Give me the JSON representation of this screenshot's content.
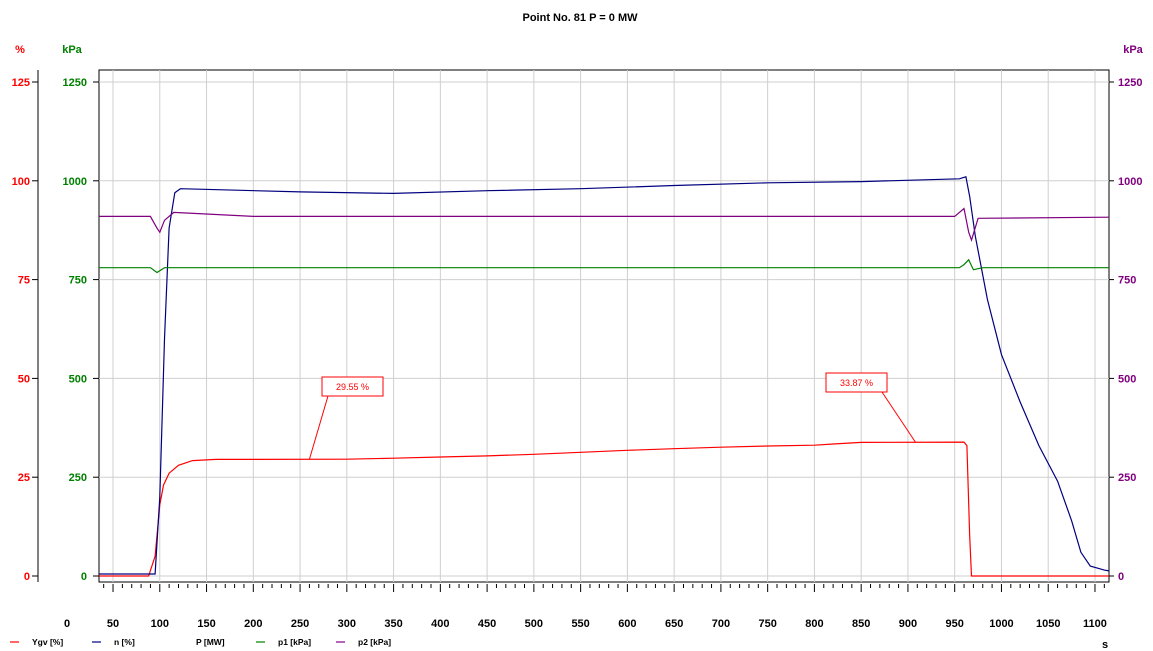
{
  "chart_data": {
    "type": "line",
    "title": "Point No. 81    P = 0 MW",
    "xlabel": "s",
    "xlim": [
      35,
      1115
    ],
    "x_ticks": [
      0,
      50,
      100,
      150,
      200,
      250,
      300,
      350,
      400,
      450,
      500,
      550,
      600,
      650,
      700,
      750,
      800,
      850,
      900,
      950,
      1000,
      1050,
      1100
    ],
    "grid": true,
    "axes": [
      {
        "id": "pct",
        "unit": "%",
        "side": "left-outer",
        "color": "#ff0000",
        "range": [
          0,
          125
        ],
        "ticks": [
          0,
          25,
          50,
          75,
          100,
          125
        ]
      },
      {
        "id": "kpa",
        "unit": "kPa",
        "side": "left-inner",
        "color": "#008000",
        "range": [
          0,
          1250
        ],
        "ticks": [
          0,
          250,
          500,
          750,
          1000,
          1250
        ]
      },
      {
        "id": "kpa2",
        "unit": "kPa",
        "side": "right",
        "color": "#800080",
        "range": [
          0,
          1250
        ],
        "ticks": [
          0,
          250,
          500,
          750,
          1000,
          1250
        ]
      }
    ],
    "series": [
      {
        "name": "Ygv [%]",
        "axis": "pct",
        "color": "#ff0000",
        "points": [
          [
            35,
            0
          ],
          [
            88,
            0
          ],
          [
            95,
            5
          ],
          [
            100,
            18
          ],
          [
            104,
            23
          ],
          [
            110,
            26
          ],
          [
            120,
            28
          ],
          [
            135,
            29.2
          ],
          [
            160,
            29.5
          ],
          [
            300,
            29.55
          ],
          [
            350,
            29.8
          ],
          [
            400,
            30.1
          ],
          [
            450,
            30.4
          ],
          [
            500,
            30.8
          ],
          [
            550,
            31.3
          ],
          [
            600,
            31.8
          ],
          [
            650,
            32.2
          ],
          [
            700,
            32.6
          ],
          [
            750,
            32.9
          ],
          [
            800,
            33.1
          ],
          [
            820,
            33.4
          ],
          [
            850,
            33.8
          ],
          [
            960,
            33.87
          ],
          [
            963,
            33
          ],
          [
            966,
            10
          ],
          [
            968,
            0
          ],
          [
            1115,
            0
          ]
        ]
      },
      {
        "name": "n [%]",
        "axis": "pct",
        "color": "#00007f",
        "points": [
          [
            35,
            0.5
          ],
          [
            95,
            0.5
          ],
          [
            100,
            20
          ],
          [
            105,
            60
          ],
          [
            110,
            88
          ],
          [
            116,
            97
          ],
          [
            122,
            98
          ],
          [
            250,
            97.2
          ],
          [
            350,
            96.8
          ],
          [
            450,
            97.5
          ],
          [
            550,
            98
          ],
          [
            650,
            98.8
          ],
          [
            750,
            99.5
          ],
          [
            850,
            99.8
          ],
          [
            955,
            100.5
          ],
          [
            962,
            101
          ],
          [
            966,
            96
          ],
          [
            972,
            86
          ],
          [
            985,
            70
          ],
          [
            1000,
            56
          ],
          [
            1020,
            44
          ],
          [
            1040,
            33
          ],
          [
            1060,
            24
          ],
          [
            1075,
            14
          ],
          [
            1085,
            6
          ],
          [
            1095,
            2.5
          ],
          [
            1110,
            1.5
          ],
          [
            1115,
            1.3
          ]
        ]
      },
      {
        "name": "P [MW]",
        "axis": "pct",
        "color": "#000000",
        "points": []
      },
      {
        "name": "p1 [kPa]",
        "axis": "kpa",
        "color": "#008000",
        "points": [
          [
            35,
            780
          ],
          [
            90,
            780
          ],
          [
            97,
            768
          ],
          [
            105,
            780
          ],
          [
            955,
            780
          ],
          [
            960,
            788
          ],
          [
            965,
            800
          ],
          [
            970,
            775
          ],
          [
            980,
            780
          ],
          [
            1115,
            780
          ]
        ]
      },
      {
        "name": "p2 [kPa]",
        "axis": "kpa2",
        "color": "#800080",
        "points": [
          [
            35,
            910
          ],
          [
            90,
            910
          ],
          [
            97,
            880
          ],
          [
            100,
            870
          ],
          [
            105,
            900
          ],
          [
            115,
            920
          ],
          [
            200,
            910
          ],
          [
            400,
            910
          ],
          [
            600,
            910
          ],
          [
            800,
            910
          ],
          [
            950,
            910
          ],
          [
            960,
            930
          ],
          [
            965,
            870
          ],
          [
            968,
            850
          ],
          [
            975,
            905
          ],
          [
            1115,
            908
          ]
        ]
      }
    ],
    "annotations": [
      {
        "text": "29.55 %",
        "x": 260,
        "y": 29.55
      },
      {
        "text": "33.87 %",
        "x": 908,
        "y": 33.87
      }
    ]
  }
}
